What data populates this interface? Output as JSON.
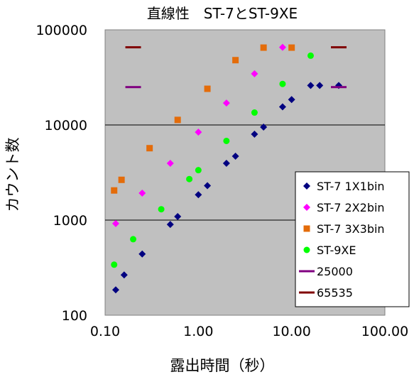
{
  "chart_data": {
    "type": "scatter",
    "title": "直線性　ST-7とST-9XE",
    "xlabel": "露出時間（秒）",
    "ylabel": "カウント数",
    "x_scale": "log",
    "y_scale": "log",
    "xlim": [
      0.1,
      100
    ],
    "ylim": [
      100,
      100000
    ],
    "x_ticks": [
      "0.10",
      "1.00",
      "10.00",
      "100.00"
    ],
    "y_ticks": [
      "100",
      "1000",
      "10000",
      "100000"
    ],
    "grid": "horizontal major gridlines",
    "legend_position": "right",
    "series": [
      {
        "name": "ST-7 1X1bin",
        "color": "#000080",
        "marker": "diamond",
        "points": [
          [
            0.13,
            185
          ],
          [
            0.16,
            265
          ],
          [
            0.25,
            440
          ],
          [
            0.5,
            900
          ],
          [
            0.6,
            1090
          ],
          [
            1.0,
            1850
          ],
          [
            1.25,
            2300
          ],
          [
            2.0,
            3950
          ],
          [
            2.5,
            4700
          ],
          [
            4.0,
            8000
          ],
          [
            5.0,
            9500
          ],
          [
            8.0,
            15500
          ],
          [
            10.0,
            18500
          ],
          [
            16.0,
            26000
          ],
          [
            20.0,
            26000
          ],
          [
            32.0,
            26000
          ]
        ]
      },
      {
        "name": "ST-7 2X2bin",
        "color": "#ff00ff",
        "marker": "diamond",
        "points": [
          [
            0.13,
            920
          ],
          [
            0.25,
            1920
          ],
          [
            0.5,
            3950
          ],
          [
            1.0,
            8400
          ],
          [
            2.0,
            17000
          ],
          [
            4.0,
            34500
          ],
          [
            8.0,
            65500
          ]
        ]
      },
      {
        "name": "ST-7 3X3bin",
        "color": "#e46c0a",
        "marker": "square",
        "points": [
          [
            0.125,
            2050
          ],
          [
            0.15,
            2650
          ],
          [
            0.3,
            5700
          ],
          [
            0.6,
            11300
          ],
          [
            1.25,
            24000
          ],
          [
            2.5,
            48000
          ],
          [
            5.0,
            65000
          ],
          [
            10.0,
            65000
          ]
        ]
      },
      {
        "name": "ST-9XE",
        "color": "#00ff00",
        "marker": "circle",
        "points": [
          [
            0.125,
            340
          ],
          [
            0.2,
            630
          ],
          [
            0.4,
            1300
          ],
          [
            0.8,
            2700
          ],
          [
            1.0,
            3350
          ],
          [
            2.0,
            6800
          ],
          [
            4.0,
            13500
          ],
          [
            8.0,
            27000
          ],
          [
            16.0,
            53500
          ]
        ]
      },
      {
        "name": "25000",
        "color": "#800080",
        "marker": "dash",
        "points": [
          [
            0.2,
            25000
          ],
          [
            32.0,
            25000
          ]
        ]
      },
      {
        "name": "65535",
        "color": "#800000",
        "marker": "dash",
        "points": [
          [
            0.2,
            65535
          ],
          [
            32.0,
            65535
          ]
        ]
      }
    ]
  }
}
